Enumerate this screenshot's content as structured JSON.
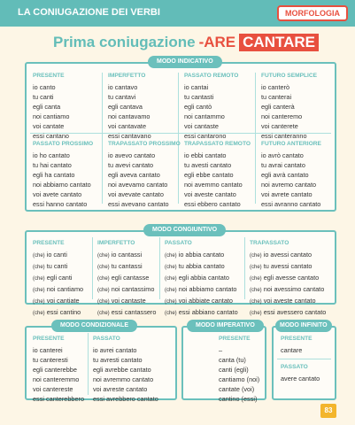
{
  "header": {
    "title": "LA CONIUGAZIONE DEI VERBI",
    "section": "MORFOLOGIA"
  },
  "page_title": {
    "main": "Prima coniugazione",
    "ending": "-ARE",
    "verb": "CANTARE"
  },
  "indicativo": {
    "label": "MODO INDICATIVO",
    "row1": [
      {
        "head": "PRESENTE",
        "lines": [
          "io canto",
          "tu canti",
          "egli canta",
          "noi cantiamo",
          "voi cantate",
          "essi cantano"
        ]
      },
      {
        "head": "IMPERFETTO",
        "lines": [
          "io cantavo",
          "tu cantavi",
          "egli cantava",
          "noi cantavamo",
          "voi cantavate",
          "essi cantavano"
        ]
      },
      {
        "head": "PASSATO REMOTO",
        "lines": [
          "io cantai",
          "tu cantasti",
          "egli cantò",
          "noi cantammo",
          "voi cantaste",
          "essi cantarono"
        ]
      },
      {
        "head": "FUTURO SEMPLICE",
        "lines": [
          "io canterò",
          "tu canterai",
          "egli canterà",
          "noi canteremo",
          "voi canterete",
          "essi canteranno"
        ]
      }
    ],
    "row2": [
      {
        "head": "PASSATO PROSSIMO",
        "lines": [
          "io ho cantato",
          "tu hai cantato",
          "egli ha cantato",
          "noi abbiamo cantato",
          "voi avete cantato",
          "essi hanno cantato"
        ]
      },
      {
        "head": "TRAPASSATO PROSSIMO",
        "lines": [
          "io avevo cantato",
          "tu avevi cantato",
          "egli aveva cantato",
          "noi avevamo cantato",
          "voi avevate cantato",
          "essi avevano cantato"
        ]
      },
      {
        "head": "TRAPASSATO REMOTO",
        "lines": [
          "io ebbi cantato",
          "tu avesti cantato",
          "egli ebbe cantato",
          "noi avemmo cantato",
          "voi aveste cantato",
          "essi ebbero cantato"
        ]
      },
      {
        "head": "FUTURO ANTERIORE",
        "lines": [
          "io avrò cantato",
          "tu avrai cantato",
          "egli avrà cantato",
          "noi avremo cantato",
          "voi avrete cantato",
          "essi avranno cantato"
        ]
      }
    ]
  },
  "congiuntivo": {
    "label": "MODO CONGIUNTIVO",
    "prefix": "(che)",
    "cols": [
      {
        "head": "PRESENTE",
        "lines": [
          "io canti",
          "tu canti",
          "egli canti",
          "noi cantiamo",
          "voi cantiate",
          "essi cantino"
        ]
      },
      {
        "head": "IMPERFETTO",
        "lines": [
          "io cantassi",
          "tu cantassi",
          "egli cantasse",
          "noi cantassimo",
          "voi cantaste",
          "essi cantassero"
        ]
      },
      {
        "head": "PASSATO",
        "lines": [
          "io abbia cantato",
          "tu abbia cantato",
          "egli abbia cantato",
          "noi abbiamo cantato",
          "voi abbiate cantato",
          "essi abbiano cantato"
        ]
      },
      {
        "head": "TRAPASSATO",
        "lines": [
          "io avessi cantato",
          "tu avessi cantato",
          "egli avesse cantato",
          "noi avessimo cantato",
          "voi aveste cantato",
          "essi avessero cantato"
        ]
      }
    ]
  },
  "condizionale": {
    "label": "MODO CONDIZIONALE",
    "cols": [
      {
        "head": "PRESENTE",
        "lines": [
          "io canterei",
          "tu canteresti",
          "egli canterebbe",
          "noi canteremmo",
          "voi cantereste",
          "essi canterebbero"
        ]
      },
      {
        "head": "PASSATO",
        "lines": [
          "io avrei cantato",
          "tu avresti cantato",
          "egli avrebbe cantato",
          "noi avremmo cantato",
          "voi avreste cantato",
          "essi avrebbero cantato"
        ]
      }
    ]
  },
  "imperativo": {
    "label": "MODO IMPERATIVO",
    "head": "PRESENTE",
    "lines": [
      "–",
      "canta (tu)",
      "canti (egli)",
      "cantiamo (noi)",
      "cantate (voi)",
      "cantino (essi)"
    ]
  },
  "infinito": {
    "label": "MODO INFINITO",
    "present_head": "PRESENTE",
    "present": "cantare",
    "past_head": "PASSATO",
    "past": "avere cantato"
  },
  "page_number": "83"
}
